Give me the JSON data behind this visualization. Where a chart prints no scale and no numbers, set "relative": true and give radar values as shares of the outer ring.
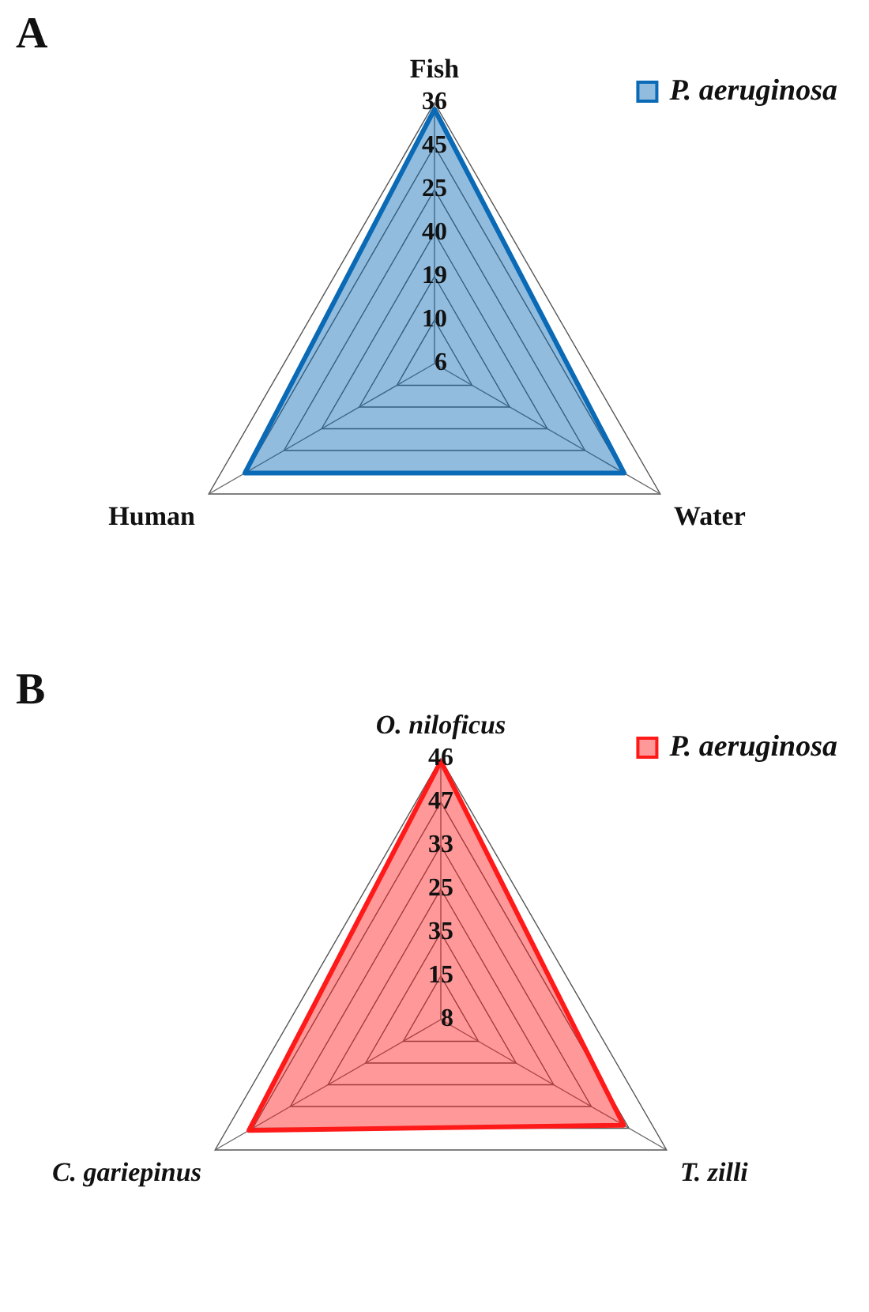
{
  "chart_data": [
    {
      "type": "radar",
      "title": "A",
      "categories": [
        "Fish",
        "Water",
        "Human"
      ],
      "relative": true,
      "annotations": [
        "36",
        "45",
        "25",
        "40",
        "19",
        "10",
        "6"
      ],
      "series": [
        {
          "name": "P. aeruginosa",
          "color": "#0a6ab5",
          "values": [
            0.975,
            0.84,
            0.84
          ]
        }
      ],
      "grid": true,
      "legend": "top right"
    },
    {
      "type": "radar",
      "title": "B",
      "categories": [
        "O. niloficus",
        "T. zilli",
        "C. gariepinus"
      ],
      "relative": true,
      "annotations": [
        "46",
        "47",
        "33",
        "25",
        "35",
        "15",
        "8"
      ],
      "series": [
        {
          "name": "P. aeruginosa",
          "color": "#ff1a1a",
          "values": [
            0.99,
            0.81,
            0.85
          ]
        }
      ],
      "grid": true,
      "legend": "top right"
    }
  ]
}
